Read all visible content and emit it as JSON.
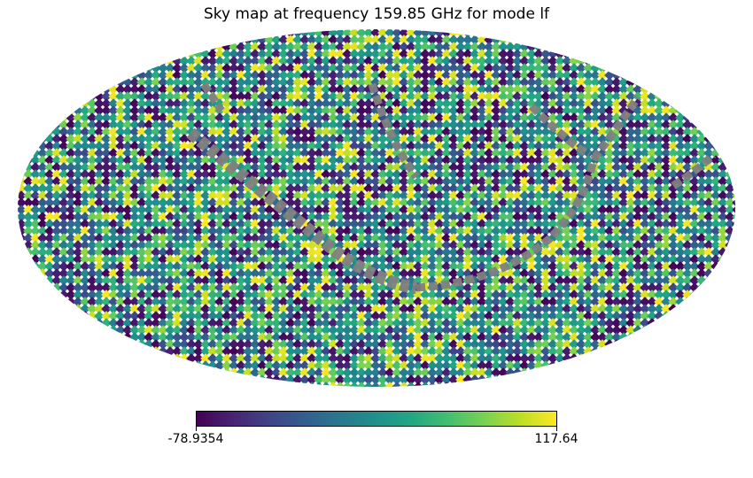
{
  "chart_data": {
    "type": "heatmap",
    "projection": "mollweide",
    "title": "Sky map at frequency 159.85 GHz for mode lf",
    "colormap": "viridis",
    "colorbar": {
      "orientation": "horizontal",
      "min_label": "-78.9354",
      "max_label": "117.64",
      "min": -78.9354,
      "max": 117.64
    },
    "masked_color": "#808080",
    "background": "#ffffff"
  }
}
